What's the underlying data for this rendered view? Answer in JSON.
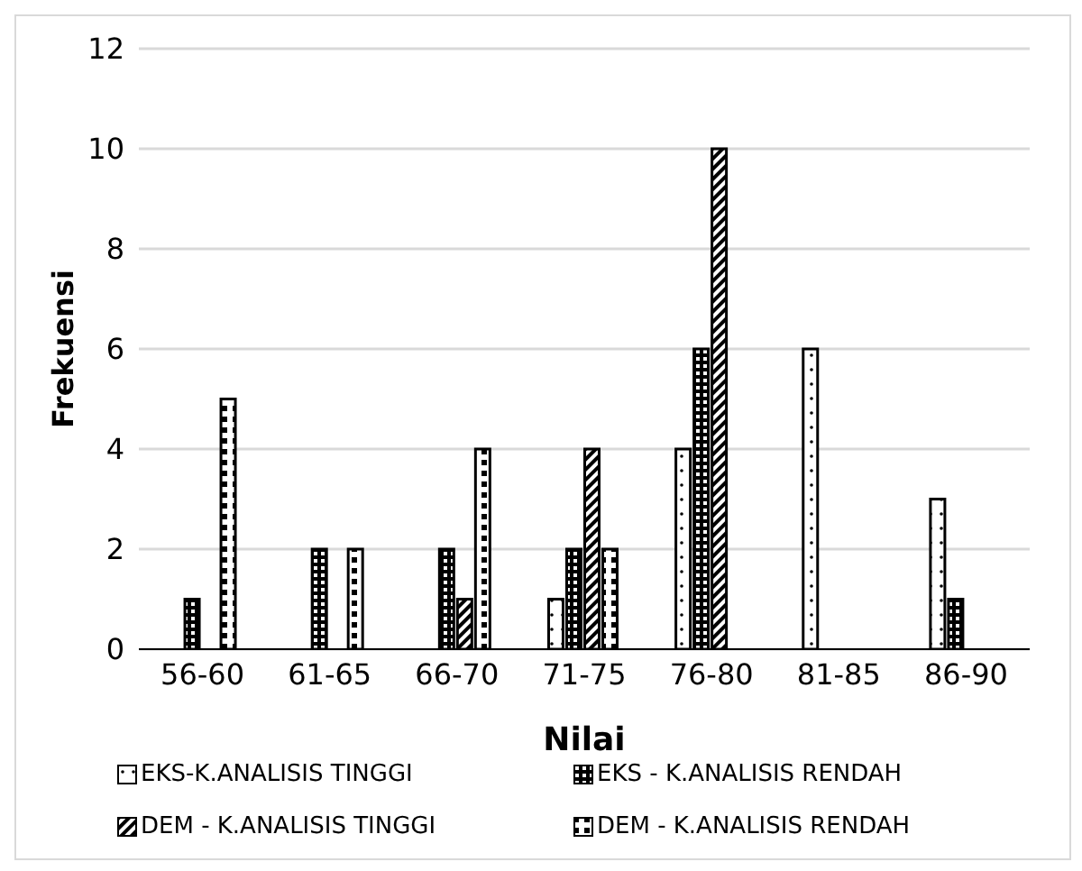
{
  "chart_data": {
    "type": "bar",
    "xlabel": "Nilai",
    "ylabel": "Frekuensi",
    "categories": [
      "56-60",
      "61-65",
      "66-70",
      "71-75",
      "76-80",
      "81-85",
      "86-90"
    ],
    "series": [
      {
        "name": "EKS-K.ANALISIS TINGGI",
        "color": "#000000",
        "values": [
          0,
          0,
          0,
          1,
          4,
          6,
          3
        ]
      },
      {
        "name": "EKS - K.ANALISIS RENDAH",
        "color": "#000000",
        "values": [
          1,
          2,
          2,
          2,
          6,
          0,
          1
        ]
      },
      {
        "name": "DEM - K.ANALISIS TINGGI",
        "color": "#000000",
        "values": [
          0,
          0,
          1,
          4,
          10,
          0,
          0
        ]
      },
      {
        "name": "DEM - K.ANALISIS RENDAH",
        "color": "#000000",
        "values": [
          5,
          2,
          4,
          2,
          0,
          0,
          0
        ]
      }
    ],
    "ylim": [
      0,
      12
    ],
    "yticks": [
      0,
      2,
      4,
      6,
      8,
      10,
      12
    ],
    "grid": "y",
    "legend": "bottom"
  }
}
